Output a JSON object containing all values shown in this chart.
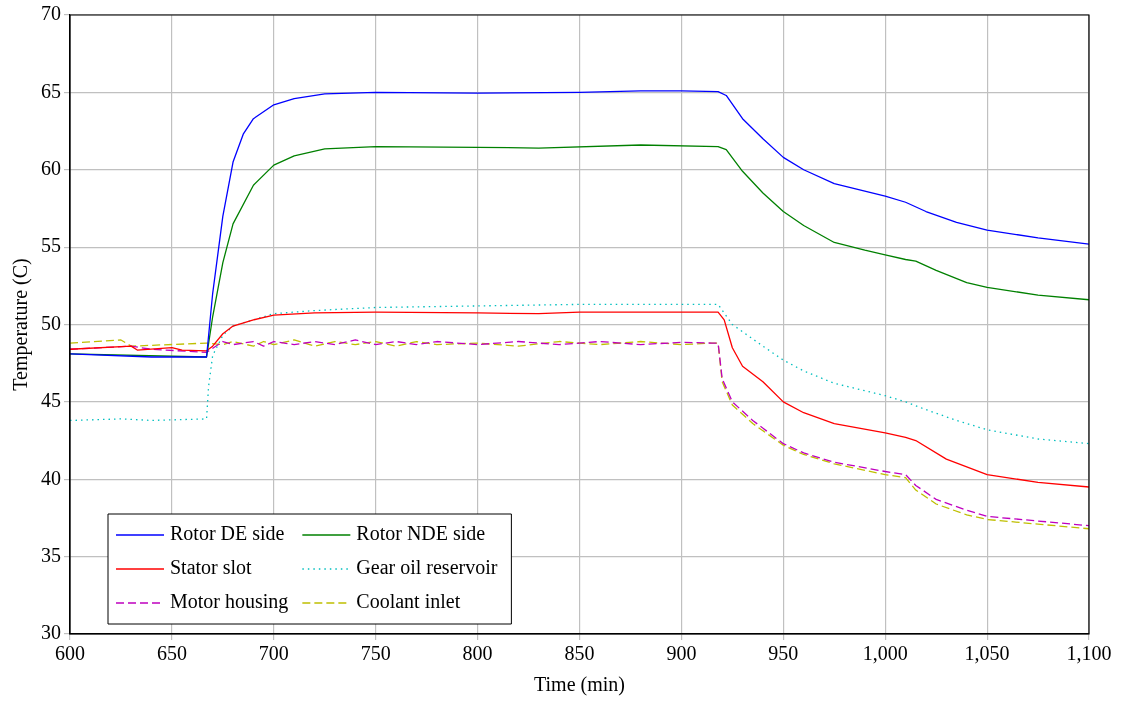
{
  "chart_data": {
    "type": "line",
    "xlabel": "Time (min)",
    "ylabel": "Temperature (C)",
    "xlim": [
      600,
      1100
    ],
    "xticks": [
      600,
      650,
      700,
      750,
      800,
      850,
      900,
      950,
      {
        "value": 1000,
        "label": "1,000"
      },
      {
        "value": 1050,
        "label": "1,050"
      },
      {
        "value": 1100,
        "label": "1,100"
      }
    ],
    "ylim": [
      30,
      70
    ],
    "yticks": [
      30,
      35,
      40,
      45,
      50,
      55,
      60,
      65,
      70
    ],
    "grid": true,
    "legend": "bottom left",
    "marker": "none",
    "series": [
      {
        "name": "Rotor DE side",
        "color": "#0000ff",
        "line_style": "solid",
        "x": [
          600,
          640,
          667,
          670,
          675,
          680,
          685,
          690,
          700,
          710,
          725,
          750,
          800,
          850,
          880,
          900,
          918,
          922,
          930,
          940,
          950,
          960,
          975,
          1000,
          1010,
          1020,
          1035,
          1050,
          1075,
          1100
        ],
        "values": [
          48.1,
          47.9,
          47.9,
          52,
          57,
          60.5,
          62.3,
          63.3,
          64.2,
          64.6,
          64.9,
          65,
          64.95,
          65,
          65.1,
          65.1,
          65.05,
          64.8,
          63.3,
          62,
          60.8,
          60,
          59.1,
          58.3,
          57.9,
          57.3,
          56.6,
          56.1,
          55.6,
          55.2
        ]
      },
      {
        "name": "Rotor NDE side",
        "color": "#008000",
        "line_style": "solid",
        "x": [
          600,
          667,
          670,
          675,
          680,
          690,
          700,
          710,
          725,
          750,
          800,
          830,
          880,
          918,
          922,
          930,
          940,
          950,
          960,
          975,
          990,
          1000,
          1010,
          1015,
          1025,
          1040,
          1050,
          1075,
          1100
        ],
        "values": [
          48.1,
          47.9,
          50.5,
          54,
          56.5,
          59,
          60.3,
          60.9,
          61.35,
          61.5,
          61.45,
          61.4,
          61.6,
          61.5,
          61.3,
          59.9,
          58.5,
          57.3,
          56.4,
          55.3,
          54.8,
          54.5,
          54.2,
          54.1,
          53.5,
          52.7,
          52.4,
          51.9,
          51.6
        ]
      },
      {
        "name": "Stator slot",
        "color": "#ff0000",
        "line_style": "solid",
        "x": [
          600,
          630,
          633,
          650,
          655,
          667,
          670,
          675,
          680,
          690,
          700,
          720,
          750,
          800,
          830,
          850,
          900,
          918,
          921,
          925,
          930,
          940,
          950,
          960,
          975,
          1000,
          1010,
          1015,
          1030,
          1050,
          1075,
          1100
        ],
        "values": [
          48.4,
          48.6,
          48.35,
          48.5,
          48.35,
          48.3,
          48.6,
          49.4,
          49.9,
          50.3,
          50.6,
          50.75,
          50.8,
          50.75,
          50.7,
          50.8,
          50.8,
          50.8,
          50.3,
          48.5,
          47.3,
          46.3,
          45,
          44.3,
          43.6,
          43,
          42.7,
          42.5,
          41.3,
          40.3,
          39.8,
          39.5
        ]
      },
      {
        "name": "Gear oil reservoir",
        "color": "#00bfbf",
        "line_style": "dotted",
        "x": [
          600,
          625,
          640,
          667,
          668,
          670,
          675,
          680,
          700,
          720,
          750,
          800,
          850,
          900,
          918,
          925,
          940,
          950,
          960,
          975,
          1000,
          1010,
          1020,
          1035,
          1050,
          1075,
          1100
        ],
        "values": [
          43.8,
          43.9,
          43.8,
          43.9,
          46,
          48,
          49.3,
          49.9,
          50.7,
          50.9,
          51.1,
          51.2,
          51.3,
          51.3,
          51.3,
          50,
          48.6,
          47.7,
          47,
          46.2,
          45.4,
          45,
          44.5,
          43.8,
          43.2,
          42.6,
          42.3
        ]
      },
      {
        "name": "Motor housing",
        "color": "#bf00bf",
        "line_style": "dashed",
        "x": [
          600,
          630,
          640,
          667,
          675,
          680,
          690,
          695,
          700,
          710,
          720,
          730,
          740,
          750,
          760,
          770,
          780,
          800,
          820,
          840,
          860,
          880,
          900,
          915,
          918,
          920,
          925,
          935,
          950,
          960,
          975,
          1000,
          1010,
          1015,
          1025,
          1040,
          1050,
          1075,
          1100
        ],
        "values": [
          48.4,
          48.6,
          48.4,
          48.2,
          48.9,
          48.7,
          48.9,
          48.6,
          48.9,
          48.7,
          48.9,
          48.7,
          49,
          48.7,
          48.9,
          48.7,
          48.9,
          48.7,
          48.9,
          48.7,
          48.9,
          48.7,
          48.85,
          48.8,
          48.8,
          46.5,
          45,
          43.8,
          42.3,
          41.7,
          41.1,
          40.5,
          40.3,
          39.6,
          38.7,
          38,
          37.6,
          37.3,
          37
        ]
      },
      {
        "name": "Coolant inlet",
        "color": "#bfbf00",
        "line_style": "dashed",
        "x": [
          600,
          625,
          630,
          667,
          675,
          680,
          690,
          695,
          700,
          710,
          720,
          730,
          740,
          750,
          760,
          770,
          780,
          800,
          820,
          840,
          860,
          880,
          900,
          915,
          918,
          920,
          925,
          935,
          950,
          960,
          975,
          1000,
          1010,
          1015,
          1025,
          1040,
          1050,
          1075,
          1100
        ],
        "values": [
          48.8,
          49,
          48.6,
          48.8,
          48.7,
          48.9,
          48.6,
          48.9,
          48.7,
          49,
          48.6,
          48.9,
          48.7,
          48.9,
          48.6,
          48.9,
          48.7,
          48.8,
          48.6,
          48.9,
          48.7,
          48.9,
          48.7,
          48.8,
          48.8,
          46.3,
          44.8,
          43.6,
          42.2,
          41.6,
          41,
          40.3,
          40.1,
          39.3,
          38.4,
          37.7,
          37.4,
          37.1,
          36.8
        ]
      }
    ]
  }
}
